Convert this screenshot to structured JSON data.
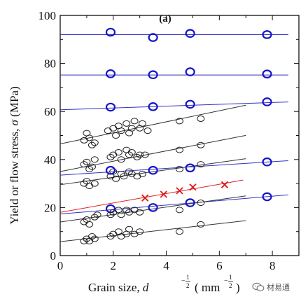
{
  "chart_data": {
    "type": "scatter",
    "panel_label": "(a)",
    "xlabel": "Grain size, d^(-1/2) (mm^(-1/2))",
    "ylabel": "Yield or flow stress, σ (MPa)",
    "xlim": [
      0,
      9
    ],
    "ylim": [
      0,
      100
    ],
    "x_ticks": [
      0,
      2,
      4,
      6,
      8
    ],
    "y_ticks": [
      0,
      20,
      40,
      60,
      80,
      100
    ],
    "grid": false,
    "colors": {
      "black": "#222222",
      "blue": "#1515c8",
      "red": "#e01818",
      "fit_black": "#333333",
      "fit_blue": "#3030c0",
      "fit_red": "#e02020"
    },
    "series": [
      {
        "marker": "circle-blue",
        "fit": {
          "intercept": 92,
          "slope": 0.0
        },
        "points": [
          [
            1.9,
            93
          ],
          [
            3.5,
            90.8
          ],
          [
            4.9,
            92.5
          ],
          [
            7.8,
            92
          ]
        ]
      },
      {
        "marker": "circle-blue",
        "fit": {
          "intercept": 75.2,
          "slope": 0.0
        },
        "points": [
          [
            1.9,
            75.7
          ],
          [
            3.5,
            75.3
          ],
          [
            4.9,
            76.5
          ],
          [
            7.8,
            75.6
          ]
        ]
      },
      {
        "marker": "circle-blue",
        "fit": {
          "intercept": 60.7,
          "slope": 0.38
        },
        "points": [
          [
            1.9,
            61.8
          ],
          [
            3.5,
            62
          ],
          [
            4.9,
            63
          ],
          [
            7.8,
            64
          ]
        ]
      },
      {
        "marker": "circle-black",
        "fit": {
          "intercept": 46.5,
          "slope": 2.3
        },
        "points": [
          [
            0.9,
            48
          ],
          [
            1.0,
            51
          ],
          [
            1.1,
            49
          ],
          [
            1.2,
            46
          ],
          [
            1.3,
            47
          ],
          [
            1.8,
            52
          ],
          [
            2.0,
            53
          ],
          [
            2.1,
            50
          ],
          [
            2.2,
            54
          ],
          [
            2.3,
            52
          ],
          [
            2.5,
            55
          ],
          [
            2.6,
            51
          ],
          [
            2.7,
            53
          ],
          [
            2.8,
            56
          ],
          [
            3.0,
            53
          ],
          [
            3.1,
            55
          ],
          [
            3.3,
            52
          ],
          [
            4.5,
            56
          ],
          [
            5.3,
            57
          ]
        ]
      },
      {
        "marker": "circle-black",
        "fit": {
          "intercept": 35.0,
          "slope": 2.15
        },
        "points": [
          [
            0.9,
            38
          ],
          [
            1.0,
            39
          ],
          [
            1.1,
            36
          ],
          [
            1.2,
            37
          ],
          [
            1.3,
            40
          ],
          [
            1.9,
            41
          ],
          [
            2.0,
            42
          ],
          [
            2.2,
            43
          ],
          [
            2.3,
            40
          ],
          [
            2.5,
            44
          ],
          [
            2.6,
            42
          ],
          [
            2.7,
            43
          ],
          [
            2.9,
            41
          ],
          [
            3.0,
            42
          ],
          [
            3.2,
            42
          ],
          [
            4.5,
            44
          ],
          [
            5.3,
            46
          ]
        ]
      },
      {
        "marker": "circle-black",
        "fit": {
          "intercept": 29.5,
          "slope": 1.55
        },
        "points": [
          [
            0.9,
            30
          ],
          [
            1.0,
            31
          ],
          [
            1.1,
            29
          ],
          [
            1.3,
            30
          ],
          [
            1.9,
            33
          ],
          [
            2.0,
            35
          ],
          [
            2.1,
            32
          ],
          [
            2.3,
            34
          ],
          [
            2.4,
            33
          ],
          [
            2.6,
            35
          ],
          [
            2.7,
            34
          ],
          [
            2.9,
            33
          ],
          [
            3.1,
            34
          ],
          [
            4.5,
            36
          ],
          [
            5.3,
            38
          ]
        ]
      },
      {
        "marker": "circle-blue",
        "fit": {
          "intercept": 33.5,
          "slope": 0.7
        },
        "points": [
          [
            1.9,
            35.5
          ],
          [
            3.5,
            35.5
          ],
          [
            4.9,
            36.5
          ],
          [
            7.8,
            39
          ]
        ]
      },
      {
        "marker": "cross-red",
        "fit": {
          "intercept": 18.0,
          "slope": 1.95
        },
        "points": [
          [
            3.2,
            24
          ],
          [
            3.9,
            25.5
          ],
          [
            4.5,
            27
          ],
          [
            5.0,
            28.5
          ],
          [
            6.2,
            29.5
          ]
        ]
      },
      {
        "marker": "circle-blue",
        "fit": {
          "intercept": 17.3,
          "slope": 0.93
        },
        "points": [
          [
            1.9,
            19.5
          ],
          [
            3.5,
            20
          ],
          [
            4.9,
            22
          ],
          [
            7.8,
            24.5
          ]
        ]
      },
      {
        "marker": "circle-black",
        "fit": {
          "intercept": 14.0,
          "slope": 1.55
        },
        "points": [
          [
            0.9,
            14
          ],
          [
            1.0,
            15
          ],
          [
            1.1,
            13
          ],
          [
            1.3,
            16
          ],
          [
            1.4,
            17
          ],
          [
            1.9,
            17
          ],
          [
            2.0,
            18
          ],
          [
            2.2,
            19
          ],
          [
            2.3,
            17
          ],
          [
            2.5,
            19
          ],
          [
            2.6,
            18
          ],
          [
            2.8,
            19
          ],
          [
            3.0,
            18
          ],
          [
            4.5,
            19
          ],
          [
            5.3,
            22
          ]
        ]
      },
      {
        "marker": "circle-black",
        "fit": {
          "intercept": 5.8,
          "slope": 1.25
        },
        "points": [
          [
            0.9,
            6
          ],
          [
            1.0,
            7
          ],
          [
            1.1,
            6
          ],
          [
            1.2,
            8
          ],
          [
            1.3,
            7
          ],
          [
            1.9,
            8
          ],
          [
            2.0,
            9
          ],
          [
            2.2,
            10
          ],
          [
            2.3,
            8
          ],
          [
            2.5,
            9
          ],
          [
            2.6,
            11
          ],
          [
            2.8,
            9
          ],
          [
            3.0,
            10
          ],
          [
            4.5,
            10
          ],
          [
            5.3,
            13
          ]
        ]
      }
    ]
  },
  "watermark": {
    "text": "材易通"
  }
}
